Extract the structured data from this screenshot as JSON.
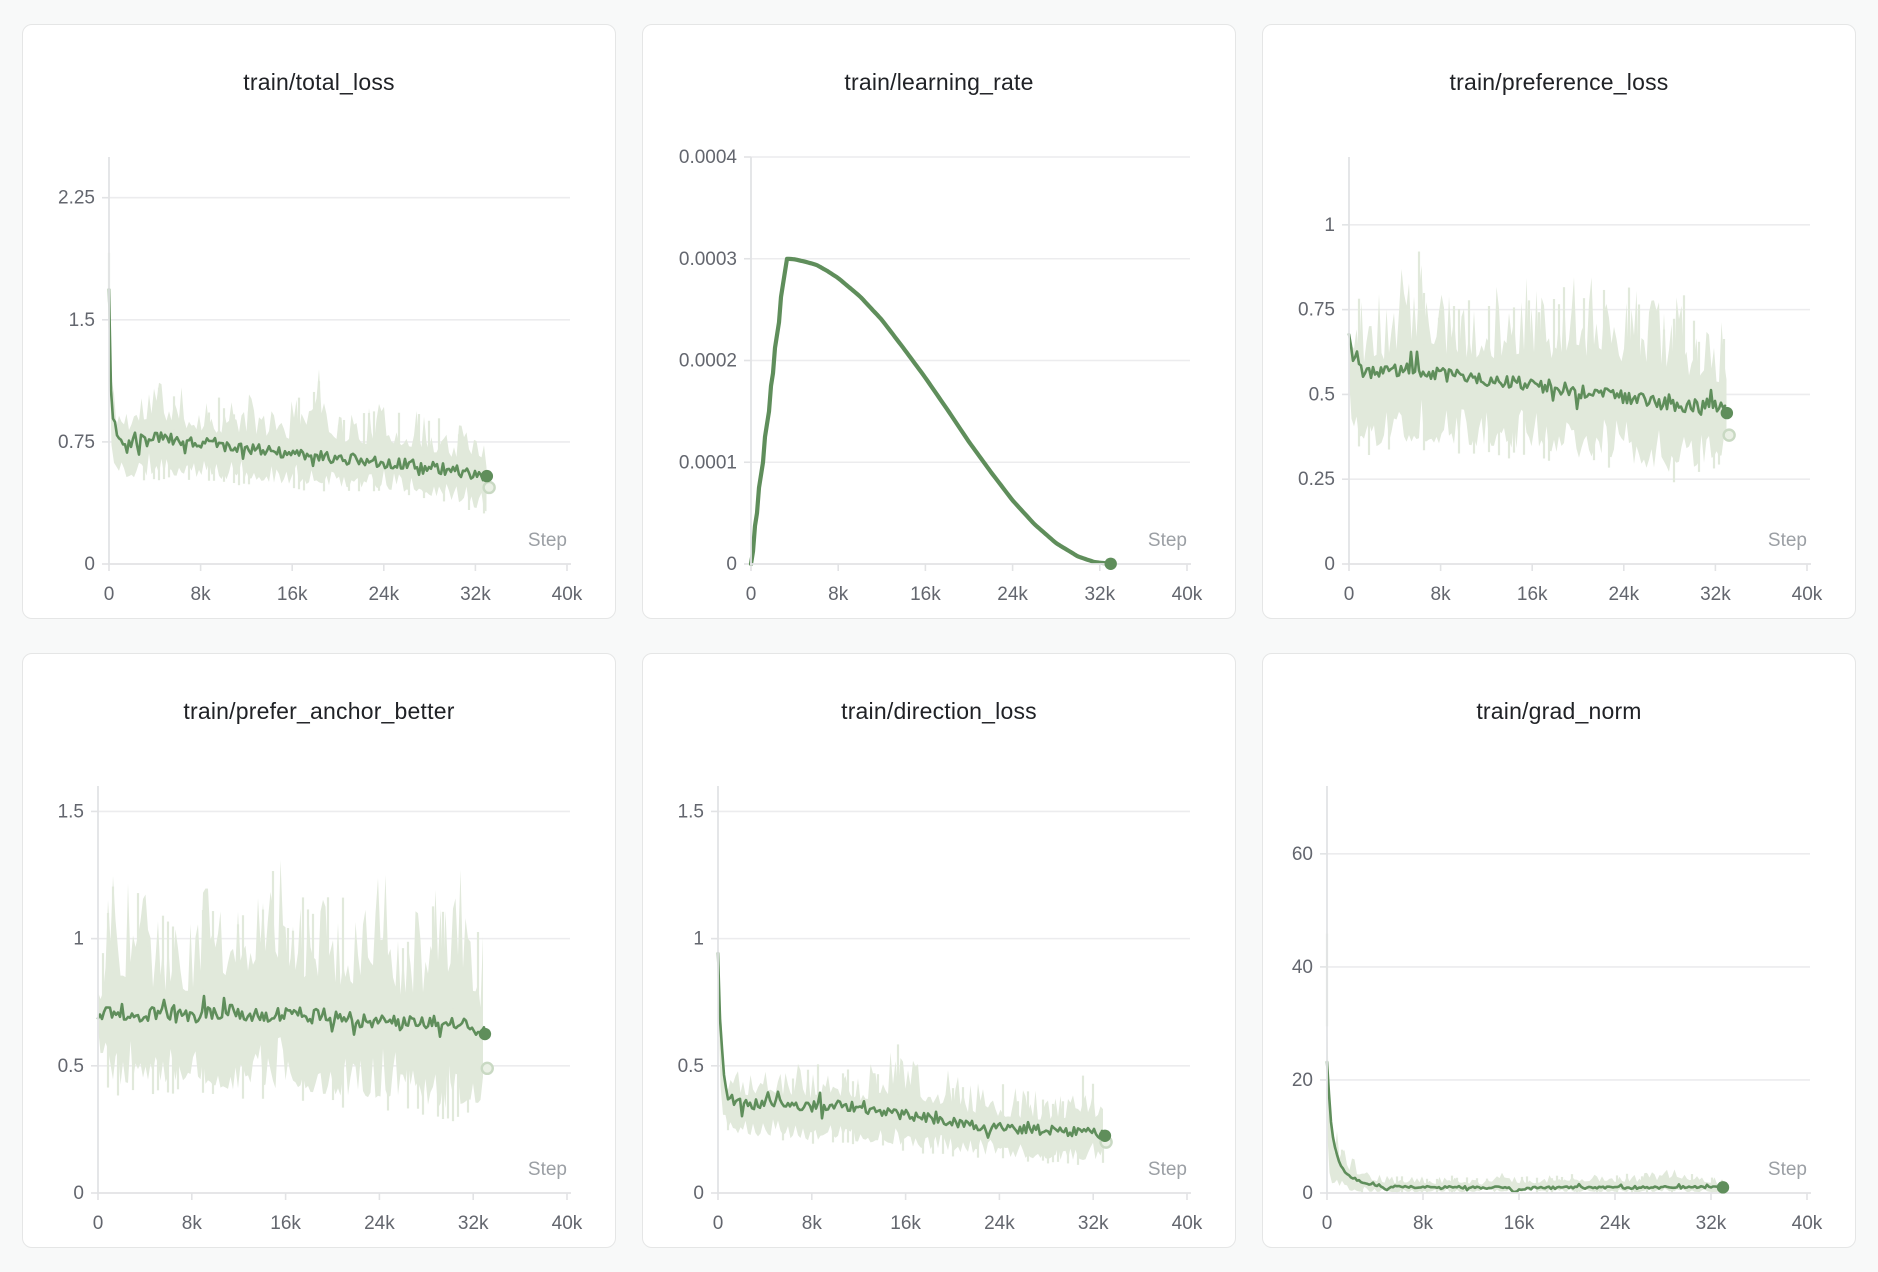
{
  "theme": {
    "line_color": "#5f8e5b",
    "band_color": "#e1e9db",
    "ring_fill": "#eaf0e5",
    "ring_stroke": "#c9d9c3",
    "grid_color": "#ececee",
    "axis_color": "#e2e3e5",
    "tick_text_color": "#63666e",
    "step_text_color": "#9b9fa4",
    "title_color": "#202226",
    "card_border": "#e5e6e6",
    "page_bg": "#f8f9f9"
  },
  "chart_data": [
    {
      "type": "line",
      "title": "train/total_loss",
      "xlabel": "Step",
      "x_max": 40000,
      "x_end": 33000,
      "x_ticks": [
        {
          "v": 0,
          "label": "0"
        },
        {
          "v": 8000,
          "label": "8k"
        },
        {
          "v": 16000,
          "label": "16k"
        },
        {
          "v": 24000,
          "label": "24k"
        },
        {
          "v": 32000,
          "label": "32k"
        },
        {
          "v": 40000,
          "label": "40k"
        }
      ],
      "ylim": [
        0,
        2.5
      ],
      "y_ticks": [
        {
          "v": 2.25,
          "label": "2.25"
        },
        {
          "v": 1.5,
          "label": "1.5"
        },
        {
          "v": 0.75,
          "label": "0.75"
        },
        {
          "v": 0,
          "label": "0"
        }
      ],
      "x": [
        0,
        150,
        400,
        800,
        1500,
        2500,
        4000,
        6000,
        8000,
        10000,
        12000,
        14000,
        16000,
        18000,
        20000,
        22000,
        24000,
        26000,
        28000,
        30000,
        31500,
        33000
      ],
      "smoothed": [
        1.68,
        1.1,
        0.88,
        0.78,
        0.75,
        0.76,
        0.78,
        0.76,
        0.745,
        0.73,
        0.71,
        0.69,
        0.675,
        0.66,
        0.65,
        0.64,
        0.625,
        0.61,
        0.6,
        0.575,
        0.56,
        0.545
      ],
      "band_lo": [
        1.3,
        0.7,
        0.58,
        0.54,
        0.52,
        0.52,
        0.54,
        0.53,
        0.52,
        0.51,
        0.5,
        0.49,
        0.48,
        0.475,
        0.465,
        0.455,
        0.45,
        0.43,
        0.41,
        0.38,
        0.345,
        0.31
      ],
      "band_hi": [
        1.92,
        1.4,
        1.12,
        1.06,
        1.05,
        1.08,
        1.22,
        1.1,
        1.06,
        1.04,
        1.06,
        1.02,
        1.0,
        1.26,
        0.98,
        0.96,
        1.0,
        0.96,
        0.92,
        0.88,
        0.91,
        0.82
      ],
      "jitter": 0.035,
      "line_width": 2.6,
      "end_dot": {
        "x": 33000,
        "y": 0.54
      },
      "raw_end_dot": {
        "x": 33200,
        "y": 0.47
      },
      "quantize_until": null,
      "quantum": null
    },
    {
      "type": "line",
      "title": "train/learning_rate",
      "xlabel": "Step",
      "x_max": 40000,
      "x_end": 33000,
      "x_ticks": [
        {
          "v": 0,
          "label": "0"
        },
        {
          "v": 8000,
          "label": "8k"
        },
        {
          "v": 16000,
          "label": "16k"
        },
        {
          "v": 24000,
          "label": "24k"
        },
        {
          "v": 32000,
          "label": "32k"
        },
        {
          "v": 40000,
          "label": "40k"
        }
      ],
      "ylim": [
        0,
        0.0004
      ],
      "y_ticks": [
        {
          "v": 0.0004,
          "label": "0.0004"
        },
        {
          "v": 0.0003,
          "label": "0.0003"
        },
        {
          "v": 0.0002,
          "label": "0.0002"
        },
        {
          "v": 0.0001,
          "label": "0.0001"
        },
        {
          "v": 0,
          "label": "0"
        }
      ],
      "x": [
        0,
        400,
        800,
        1200,
        1600,
        2000,
        2400,
        2800,
        3200,
        4000,
        5000,
        6000,
        7000,
        8000,
        10000,
        12000,
        14000,
        16000,
        18000,
        20000,
        22000,
        24000,
        26000,
        28000,
        30000,
        31500,
        33000
      ],
      "smoothed": [
        0,
        3.75e-05,
        7.5e-05,
        0.0001125,
        0.00015,
        0.0001875,
        0.000225,
        0.0002625,
        0.0003,
        0.0002995,
        0.000297,
        0.000294,
        0.000288,
        0.000281,
        0.000263,
        0.00024,
        0.000212,
        0.000183,
        0.000152,
        0.00012,
        9.05e-05,
        6.25e-05,
        3.91e-05,
        2.04e-05,
        7.4e-06,
        1.9e-06,
        2e-07
      ],
      "band_lo": null,
      "band_hi": null,
      "jitter": 0,
      "line_width": 4.2,
      "end_dot": {
        "x": 33000,
        "y": 2e-07
      },
      "raw_end_dot": null,
      "quantize_until": 3200,
      "quantum": 1.25e-05
    },
    {
      "type": "line",
      "title": "train/preference_loss",
      "xlabel": "Step",
      "x_max": 40000,
      "x_end": 33000,
      "x_ticks": [
        {
          "v": 0,
          "label": "0"
        },
        {
          "v": 8000,
          "label": "8k"
        },
        {
          "v": 16000,
          "label": "16k"
        },
        {
          "v": 24000,
          "label": "24k"
        },
        {
          "v": 32000,
          "label": "32k"
        },
        {
          "v": 40000,
          "label": "40k"
        }
      ],
      "ylim": [
        0,
        1.2
      ],
      "y_ticks": [
        {
          "v": 1,
          "label": "1"
        },
        {
          "v": 0.75,
          "label": "0.75"
        },
        {
          "v": 0.5,
          "label": "0.5"
        },
        {
          "v": 0.25,
          "label": "0.25"
        },
        {
          "v": 0,
          "label": "0"
        }
      ],
      "x": [
        0,
        200,
        600,
        1200,
        2000,
        3000,
        4500,
        6500,
        8000,
        10000,
        12000,
        14000,
        16000,
        18000,
        20000,
        22000,
        24000,
        26000,
        28000,
        30000,
        31500,
        33000
      ],
      "smoothed": [
        0.69,
        0.63,
        0.585,
        0.57,
        0.565,
        0.57,
        0.575,
        0.57,
        0.56,
        0.55,
        0.545,
        0.535,
        0.53,
        0.52,
        0.51,
        0.5,
        0.495,
        0.48,
        0.47,
        0.465,
        0.47,
        0.45
      ],
      "band_lo": [
        0.5,
        0.4,
        0.36,
        0.34,
        0.33,
        0.35,
        0.34,
        0.35,
        0.345,
        0.34,
        0.335,
        0.33,
        0.33,
        0.32,
        0.3,
        0.31,
        0.295,
        0.27,
        0.26,
        0.275,
        0.29,
        0.3
      ],
      "band_hi": [
        0.74,
        0.77,
        0.8,
        0.78,
        0.82,
        0.8,
        0.87,
        0.95,
        0.84,
        0.83,
        0.82,
        0.85,
        0.86,
        0.82,
        0.86,
        0.87,
        0.84,
        0.8,
        0.82,
        0.78,
        0.72,
        0.74
      ],
      "jitter": 0.02,
      "line_width": 2.6,
      "end_dot": {
        "x": 33000,
        "y": 0.445
      },
      "raw_end_dot": {
        "x": 33200,
        "y": 0.38
      },
      "quantize_until": null,
      "quantum": null
    },
    {
      "type": "line",
      "title": "train/prefer_anchor_better",
      "xlabel": "Step",
      "x_max": 40000,
      "x_end": 33000,
      "x_ticks": [
        {
          "v": 0,
          "label": "0"
        },
        {
          "v": 8000,
          "label": "8k"
        },
        {
          "v": 16000,
          "label": "16k"
        },
        {
          "v": 24000,
          "label": "24k"
        },
        {
          "v": 32000,
          "label": "32k"
        },
        {
          "v": 40000,
          "label": "40k"
        }
      ],
      "ylim": [
        0,
        1.6
      ],
      "y_ticks": [
        {
          "v": 1.5,
          "label": "1.5"
        },
        {
          "v": 1,
          "label": "1"
        },
        {
          "v": 0.5,
          "label": "0.5"
        },
        {
          "v": 0,
          "label": "0"
        }
      ],
      "x": [
        0,
        500,
        1200,
        2000,
        3000,
        4500,
        6000,
        8000,
        10000,
        11500,
        13000,
        15000,
        16500,
        18000,
        20000,
        22000,
        24000,
        26000,
        27500,
        29500,
        31000,
        33000
      ],
      "smoothed": [
        0.7,
        0.715,
        0.7,
        0.71,
        0.7,
        0.705,
        0.7,
        0.695,
        0.705,
        0.72,
        0.7,
        0.7,
        0.71,
        0.695,
        0.7,
        0.68,
        0.675,
        0.67,
        0.665,
        0.675,
        0.66,
        0.63
      ],
      "band_lo": [
        0.6,
        0.46,
        0.43,
        0.4,
        0.42,
        0.41,
        0.4,
        0.42,
        0.4,
        0.39,
        0.4,
        0.39,
        0.4,
        0.38,
        0.37,
        0.36,
        0.35,
        0.37,
        0.33,
        0.31,
        0.33,
        0.33
      ],
      "band_hi": [
        0.82,
        1.08,
        1.33,
        1.12,
        1.36,
        1.1,
        1.12,
        1.1,
        1.28,
        1.2,
        1.26,
        1.42,
        1.16,
        1.18,
        1.17,
        1.2,
        1.39,
        1.06,
        1.14,
        1.31,
        1.36,
        0.98
      ],
      "jitter": 0.028,
      "line_width": 2.6,
      "end_dot": {
        "x": 33000,
        "y": 0.625
      },
      "raw_end_dot": {
        "x": 33200,
        "y": 0.49
      },
      "quantize_until": null,
      "quantum": null
    },
    {
      "type": "line",
      "title": "train/direction_loss",
      "xlabel": "Step",
      "x_max": 40000,
      "x_end": 33000,
      "x_ticks": [
        {
          "v": 0,
          "label": "0"
        },
        {
          "v": 8000,
          "label": "8k"
        },
        {
          "v": 16000,
          "label": "16k"
        },
        {
          "v": 24000,
          "label": "24k"
        },
        {
          "v": 32000,
          "label": "32k"
        },
        {
          "v": 40000,
          "label": "40k"
        }
      ],
      "ylim": [
        0,
        1.6
      ],
      "y_ticks": [
        {
          "v": 1.5,
          "label": "1.5"
        },
        {
          "v": 1,
          "label": "1"
        },
        {
          "v": 0.5,
          "label": "0.5"
        },
        {
          "v": 0,
          "label": "0"
        }
      ],
      "x": [
        0,
        150,
        400,
        800,
        1500,
        2500,
        4000,
        6000,
        8000,
        10000,
        12000,
        14000,
        15500,
        17000,
        19000,
        21000,
        23000,
        25000,
        27000,
        29000,
        31000,
        33000
      ],
      "smoothed": [
        0.95,
        0.7,
        0.5,
        0.4,
        0.355,
        0.345,
        0.355,
        0.35,
        0.34,
        0.345,
        0.335,
        0.32,
        0.31,
        0.3,
        0.29,
        0.275,
        0.26,
        0.255,
        0.25,
        0.245,
        0.24,
        0.225
      ],
      "band_lo": [
        0.78,
        0.45,
        0.3,
        0.25,
        0.22,
        0.21,
        0.22,
        0.21,
        0.2,
        0.21,
        0.195,
        0.19,
        0.18,
        0.17,
        0.16,
        0.15,
        0.14,
        0.135,
        0.13,
        0.125,
        0.12,
        0.13
      ],
      "band_hi": [
        1.18,
        0.9,
        0.62,
        0.52,
        0.5,
        0.52,
        0.55,
        0.52,
        0.5,
        0.53,
        0.5,
        0.52,
        0.6,
        0.52,
        0.5,
        0.46,
        0.44,
        0.43,
        0.42,
        0.4,
        0.47,
        0.4
      ],
      "jitter": 0.02,
      "line_width": 2.6,
      "end_dot": {
        "x": 33000,
        "y": 0.225
      },
      "raw_end_dot": {
        "x": 33100,
        "y": 0.2
      },
      "quantize_until": null,
      "quantum": null
    },
    {
      "type": "line",
      "title": "train/grad_norm",
      "xlabel": "Step",
      "x_max": 40000,
      "x_end": 33000,
      "x_ticks": [
        {
          "v": 0,
          "label": "0"
        },
        {
          "v": 8000,
          "label": "8k"
        },
        {
          "v": 16000,
          "label": "16k"
        },
        {
          "v": 24000,
          "label": "24k"
        },
        {
          "v": 32000,
          "label": "32k"
        },
        {
          "v": 40000,
          "label": "40k"
        }
      ],
      "ylim": [
        0,
        72
      ],
      "y_ticks": [
        {
          "v": 60,
          "label": "60"
        },
        {
          "v": 40,
          "label": "40"
        },
        {
          "v": 20,
          "label": "20"
        },
        {
          "v": 0,
          "label": "0"
        }
      ],
      "x": [
        0,
        150,
        350,
        600,
        1000,
        1500,
        2000,
        2800,
        3600,
        4400,
        4800,
        5500,
        7000,
        9000,
        11000,
        13000,
        15000,
        15600,
        17000,
        20000,
        23000,
        26000,
        29000,
        31000,
        33000
      ],
      "smoothed": [
        23,
        18,
        12,
        8.5,
        5.5,
        3.8,
        2.8,
        2.0,
        1.6,
        1.3,
        0.5,
        1.2,
        1.1,
        1.0,
        1.0,
        0.95,
        1.0,
        0.3,
        0.95,
        0.95,
        1.0,
        0.95,
        1.0,
        1.0,
        1.0
      ],
      "band_lo": [
        8,
        3,
        1.5,
        0.8,
        0.5,
        0.3,
        0.2,
        0.15,
        0.1,
        0.1,
        0.1,
        0.1,
        0.1,
        0.1,
        0.1,
        0.1,
        0.1,
        0.1,
        0.1,
        0.1,
        0.1,
        0.1,
        0.1,
        0.1,
        0.1
      ],
      "band_hi": [
        51,
        20,
        14,
        12,
        11,
        8,
        6.5,
        5,
        4,
        3.5,
        3.2,
        3.0,
        3.4,
        2.8,
        3.2,
        2.6,
        4.2,
        3.0,
        3.0,
        3.4,
        3.6,
        3.4,
        4.4,
        3.2,
        2.6
      ],
      "jitter": 0.22,
      "line_width": 2.6,
      "end_dot": {
        "x": 33000,
        "y": 1.0
      },
      "raw_end_dot": null,
      "quantize_until": null,
      "quantum": null
    }
  ]
}
